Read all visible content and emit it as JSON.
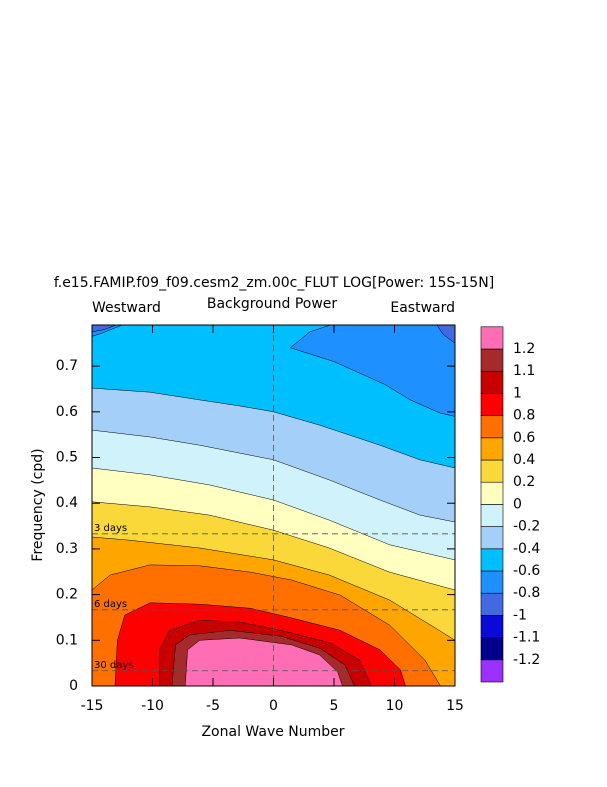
{
  "chart_data": {
    "type": "contour",
    "title": "f.e15.FAMIP.f09_f09.cesm2_zm.00c_FLUT LOG[Power: 15S-15N]",
    "subtitle": "Background Power",
    "left_label": "Westward",
    "right_label": "Eastward",
    "xlabel": "Zonal Wave Number",
    "ylabel": "Frequency (cpd)",
    "xlim": [
      -15,
      15
    ],
    "ylim": [
      0,
      0.79
    ],
    "xticks": [
      -15,
      -10,
      -5,
      0,
      5,
      10,
      15
    ],
    "yticks": [
      0,
      0.1,
      0.2,
      0.3,
      0.4,
      0.5,
      0.6,
      0.7
    ],
    "levels": [
      -1.2,
      -1.1,
      -1,
      -0.8,
      -0.6,
      -0.4,
      -0.2,
      0,
      0.2,
      0.4,
      0.6,
      0.8,
      1,
      1.1,
      1.2
    ],
    "colors": [
      "#9b30ff",
      "#00008b",
      "#0a0ad8",
      "#4169e1",
      "#1e90ff",
      "#00bfff",
      "#a4cff8",
      "#d0f2fa",
      "#ffffc0",
      "#fad83a",
      "#ffa500",
      "#ff7000",
      "#ff0000",
      "#c80000",
      "#a52a2a",
      "#ff6eb4"
    ],
    "contours": [
      {
        "level": -0.8,
        "x": [
          -15,
          -15,
          -14,
          -13,
          13.5,
          14,
          15,
          15
        ],
        "y": [
          0,
          0.775,
          0.78,
          0.79,
          0.79,
          0.77,
          0.75,
          0
        ]
      },
      {
        "level": -0.6,
        "x": [
          -15,
          -15,
          -14.2,
          -12.5,
          4.7,
          3,
          1.4,
          5,
          9.2,
          11.3,
          13.8,
          15,
          15
        ],
        "y": [
          0,
          0.765,
          0.772,
          0.79,
          0.79,
          0.775,
          0.74,
          0.71,
          0.66,
          0.626,
          0.597,
          0.59,
          0
        ]
      },
      {
        "level": -0.4,
        "x": [
          -15,
          -15,
          -10.2,
          -6.1,
          -2.8,
          0,
          3.8,
          8.8,
          12.1,
          15,
          15
        ],
        "y": [
          0,
          0.652,
          0.643,
          0.626,
          0.613,
          0.6,
          0.571,
          0.527,
          0.495,
          0.477,
          0
        ]
      },
      {
        "level": -0.2,
        "x": [
          -15,
          -15,
          -10.2,
          -6.1,
          0,
          4.6,
          8.8,
          12.1,
          15,
          15
        ],
        "y": [
          0,
          0.56,
          0.545,
          0.527,
          0.495,
          0.451,
          0.407,
          0.374,
          0.359,
          0
        ]
      },
      {
        "level": 0,
        "x": [
          -15,
          -15,
          -10.2,
          -5.3,
          0,
          4.6,
          9.6,
          15,
          15
        ],
        "y": [
          0,
          0.477,
          0.462,
          0.44,
          0.407,
          0.363,
          0.309,
          0.276,
          0
        ]
      },
      {
        "level": 0.2,
        "x": [
          -15,
          -15,
          -10.2,
          -5.3,
          0,
          4.6,
          9.6,
          15,
          15
        ],
        "y": [
          0,
          0.403,
          0.392,
          0.374,
          0.341,
          0.302,
          0.249,
          0.21,
          0
        ]
      },
      {
        "level": 0.4,
        "x": [
          -15,
          -15,
          -11.9,
          -6.1,
          0,
          4.6,
          9.6,
          13.8,
          15,
          15
        ],
        "y": [
          0,
          0.326,
          0.319,
          0.302,
          0.276,
          0.243,
          0.188,
          0.12,
          0.1,
          0
        ]
      },
      {
        "level": 0.6,
        "x": [
          -15,
          -15,
          -13.5,
          -10.2,
          -6.1,
          -1.9,
          1.5,
          5.5,
          9.6,
          12.5,
          13.8
        ],
        "y": [
          0,
          0.21,
          0.243,
          0.265,
          0.263,
          0.249,
          0.232,
          0.199,
          0.133,
          0.057,
          0
        ]
      },
      {
        "level": 0.8,
        "x": [
          -13.1,
          -12.9,
          -12.3,
          -10.2,
          -6.1,
          -1.9,
          1.5,
          5.5,
          8.8,
          10.5,
          10.9
        ],
        "y": [
          0,
          0.1,
          0.155,
          0.182,
          0.179,
          0.17,
          0.149,
          0.122,
          0.079,
          0.035,
          0
        ]
      },
      {
        "level": 1,
        "x": [
          -9.4,
          -9.4,
          -8.6,
          -6.1,
          -2.8,
          0.6,
          4.7,
          7.1,
          8.1
        ],
        "y": [
          0,
          0.079,
          0.122,
          0.144,
          0.14,
          0.122,
          0.094,
          0.057,
          0
        ]
      },
      {
        "level": 1.1,
        "x": [
          -8.4,
          -8.1,
          -6.9,
          -3.6,
          0.6,
          3.8,
          5.9,
          6.7
        ],
        "y": [
          0,
          0.09,
          0.112,
          0.122,
          0.109,
          0.083,
          0.046,
          0
        ]
      },
      {
        "level": 1.2,
        "x": [
          -7.3,
          -7.1,
          -6.1,
          -2.8,
          1.5,
          3.8,
          5.3,
          5.7
        ],
        "y": [
          0,
          0.079,
          0.1,
          0.105,
          0.09,
          0.068,
          0.031,
          0
        ]
      }
    ],
    "vline": 0,
    "period_lines": [
      {
        "label": "3 days",
        "value": 0.333
      },
      {
        "label": "6 days",
        "value": 0.1667
      },
      {
        "label": "30 days",
        "value": 0.0333
      }
    ]
  }
}
